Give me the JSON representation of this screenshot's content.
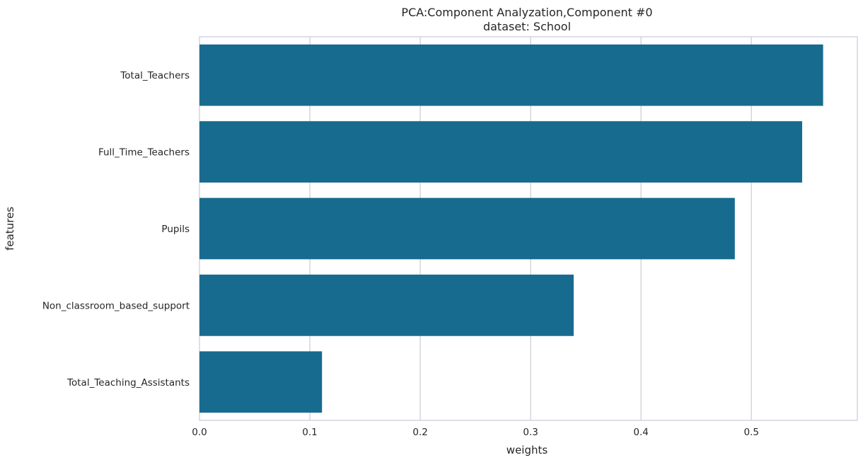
{
  "chart_data": {
    "type": "bar",
    "orientation": "horizontal",
    "title": "PCA:Component Analyzation,Component #0",
    "subtitle": "dataset: School",
    "xlabel": "weights",
    "ylabel": "features",
    "categories": [
      "Total_Teachers",
      "Full_Time_Teachers",
      "Pupils",
      "Non_classroom_based_support",
      "Total_Teaching_Assistants"
    ],
    "values": [
      0.565,
      0.546,
      0.485,
      0.339,
      0.111
    ],
    "xlim": [
      0,
      0.596
    ],
    "xticks": [
      0.0,
      0.1,
      0.2,
      0.3,
      0.4,
      0.5
    ],
    "xtick_labels": [
      "0.0",
      "0.1",
      "0.2",
      "0.3",
      "0.4",
      "0.5"
    ],
    "grid": true,
    "bar_color": "#176b8f"
  }
}
